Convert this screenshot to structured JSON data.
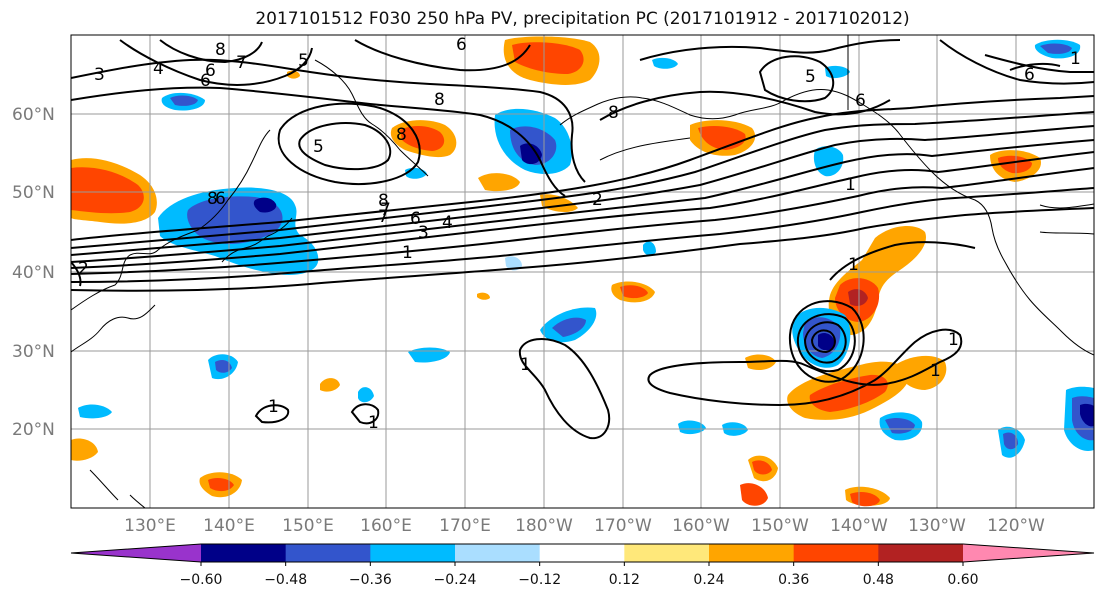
{
  "title": "2017101512 F030 250 hPa PV, precipitation PC (2017101912 - 2017102012)",
  "lat_labels": [
    "60°N",
    "50°N",
    "40°N",
    "30°N",
    "20°N"
  ],
  "lon_labels": [
    "130°E",
    "140°E",
    "150°E",
    "160°E",
    "170°E",
    "180°W",
    "170°W",
    "160°W",
    "150°W",
    "140°W",
    "130°W",
    "120°W"
  ],
  "colorbar": {
    "ticks": [
      "−0.60",
      "−0.48",
      "−0.36",
      "−0.24",
      "−0.12",
      "0.12",
      "0.24",
      "0.36",
      "0.48",
      "0.60"
    ],
    "colors": [
      "#9933cc",
      "#000088",
      "#3355cc",
      "#00bbff",
      "#aadeff",
      "#ffffff",
      "#ffe87a",
      "#ffa500",
      "#ff4500",
      "#b22222",
      "#ff88b0"
    ]
  },
  "contour_labels": [
    "3",
    "4",
    "6",
    "7",
    "8",
    "6",
    "5",
    "8",
    "8",
    "6",
    "5",
    "8",
    "5",
    "6",
    "2",
    "8",
    "7",
    "6",
    "4",
    "3",
    "1",
    "2",
    "1",
    "1",
    "1",
    "1",
    "1",
    "6",
    "8",
    "6",
    "7",
    "1",
    "1",
    "1"
  ],
  "colors": {
    "neg_strong": "#000088",
    "neg_mid": "#3355cc",
    "neg_light": "#00bbff",
    "neg_faint": "#aadeff",
    "pos_faint": "#ffe87a",
    "pos_light": "#ffa500",
    "pos_mid": "#ff4500",
    "pos_strong": "#b22222",
    "pos_extreme": "#ff88b0",
    "gridline": "#9a9a9a",
    "contour": "#000000"
  }
}
